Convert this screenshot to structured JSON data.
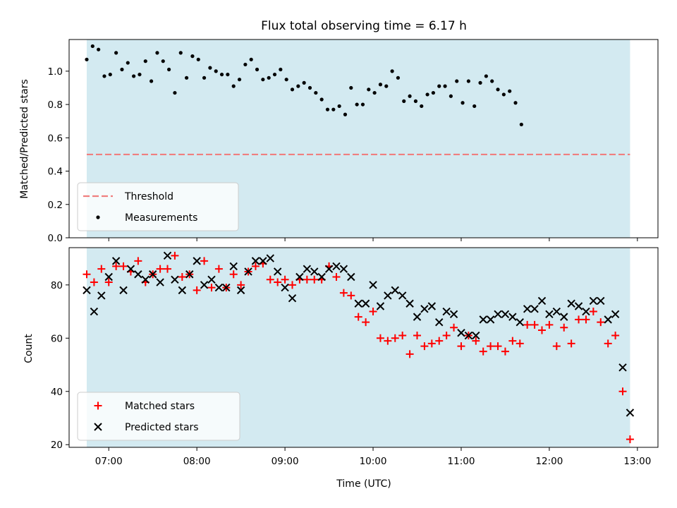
{
  "chart_data": [
    {
      "type": "scatter",
      "title": "Flux total observing time = 6.17 h",
      "xlabel": "",
      "ylabel": "Matched/Predicted stars",
      "ylim": [
        0,
        1.19
      ],
      "yticks": [
        "0.0",
        "0.2",
        "0.4",
        "0.6",
        "0.8",
        "1.0"
      ],
      "xlim": [
        "06:33",
        "13:14"
      ],
      "shaded_span": [
        "06:45",
        "12:55"
      ],
      "shade_color": "#d3eaf1",
      "threshold": {
        "name": "Threshold",
        "value": 0.5,
        "color": "#f07f7f",
        "style": "dashed"
      },
      "series": [
        {
          "name": "Measurements",
          "color": "#000000",
          "marker": "dot",
          "points": [
            [
              "06:45",
              1.07
            ],
            [
              "06:49",
              1.15
            ],
            [
              "06:53",
              1.13
            ],
            [
              "06:57",
              0.97
            ],
            [
              "07:01",
              0.98
            ],
            [
              "07:05",
              1.11
            ],
            [
              "07:09",
              1.01
            ],
            [
              "07:13",
              1.05
            ],
            [
              "07:17",
              0.97
            ],
            [
              "07:21",
              0.98
            ],
            [
              "07:25",
              1.06
            ],
            [
              "07:29",
              0.94
            ],
            [
              "07:33",
              1.11
            ],
            [
              "07:37",
              1.06
            ],
            [
              "07:41",
              1.01
            ],
            [
              "07:45",
              0.87
            ],
            [
              "07:49",
              1.11
            ],
            [
              "07:53",
              0.96
            ],
            [
              "07:57",
              1.09
            ],
            [
              "08:01",
              1.07
            ],
            [
              "08:05",
              0.96
            ],
            [
              "08:09",
              1.02
            ],
            [
              "08:13",
              1.0
            ],
            [
              "08:17",
              0.98
            ],
            [
              "08:21",
              0.98
            ],
            [
              "08:25",
              0.91
            ],
            [
              "08:29",
              0.95
            ],
            [
              "08:33",
              1.04
            ],
            [
              "08:37",
              1.07
            ],
            [
              "08:41",
              1.01
            ],
            [
              "08:45",
              0.95
            ],
            [
              "08:49",
              0.96
            ],
            [
              "08:53",
              0.98
            ],
            [
              "08:57",
              1.01
            ],
            [
              "09:01",
              0.95
            ],
            [
              "09:05",
              0.89
            ],
            [
              "09:09",
              0.91
            ],
            [
              "09:13",
              0.93
            ],
            [
              "09:17",
              0.9
            ],
            [
              "09:21",
              0.87
            ],
            [
              "09:25",
              0.83
            ],
            [
              "09:29",
              0.77
            ],
            [
              "09:33",
              0.77
            ],
            [
              "09:37",
              0.79
            ],
            [
              "09:41",
              0.74
            ],
            [
              "09:45",
              0.9
            ],
            [
              "09:49",
              0.8
            ],
            [
              "09:53",
              0.8
            ],
            [
              "09:57",
              0.89
            ],
            [
              "10:01",
              0.87
            ],
            [
              "10:05",
              0.92
            ],
            [
              "10:09",
              0.91
            ],
            [
              "10:13",
              1.0
            ],
            [
              "10:17",
              0.96
            ],
            [
              "10:21",
              0.82
            ],
            [
              "10:25",
              0.85
            ],
            [
              "10:29",
              0.82
            ],
            [
              "10:33",
              0.79
            ],
            [
              "10:37",
              0.86
            ],
            [
              "10:41",
              0.87
            ],
            [
              "10:45",
              0.91
            ],
            [
              "10:49",
              0.91
            ],
            [
              "10:53",
              0.85
            ],
            [
              "10:57",
              0.94
            ],
            [
              "11:01",
              0.81
            ],
            [
              "11:05",
              0.94
            ],
            [
              "11:09",
              0.79
            ],
            [
              "11:13",
              0.93
            ],
            [
              "11:17",
              0.97
            ],
            [
              "11:21",
              0.94
            ],
            [
              "11:25",
              0.89
            ],
            [
              "11:29",
              0.86
            ],
            [
              "11:33",
              0.88
            ],
            [
              "11:37",
              0.81
            ],
            [
              "11:41",
              0.68
            ]
          ]
        }
      ],
      "legend": "lower-left"
    },
    {
      "type": "scatter",
      "title": "",
      "xlabel": "Time (UTC)",
      "ylabel": "Count",
      "ylim": [
        19,
        94
      ],
      "yticks": [
        "20",
        "40",
        "60",
        "80"
      ],
      "xlim": [
        "06:33",
        "13:14"
      ],
      "xticks": [
        "07:00",
        "08:00",
        "09:00",
        "10:00",
        "11:00",
        "12:00",
        "13:00"
      ],
      "shaded_span": [
        "06:45",
        "12:55"
      ],
      "shade_color": "#d3eaf1",
      "series": [
        {
          "name": "Matched stars",
          "color": "#ff0000",
          "marker": "plus",
          "points": [
            [
              "06:45",
              84
            ],
            [
              "06:50",
              81
            ],
            [
              "06:55",
              86
            ],
            [
              "07:00",
              81
            ],
            [
              "07:05",
              87
            ],
            [
              "07:10",
              87
            ],
            [
              "07:15",
              85
            ],
            [
              "07:20",
              89
            ],
            [
              "07:25",
              81
            ],
            [
              "07:30",
              84
            ],
            [
              "07:35",
              86
            ],
            [
              "07:40",
              86
            ],
            [
              "07:45",
              91
            ],
            [
              "07:50",
              83
            ],
            [
              "07:55",
              84
            ],
            [
              "08:00",
              78
            ],
            [
              "08:05",
              89
            ],
            [
              "08:10",
              79
            ],
            [
              "08:15",
              86
            ],
            [
              "08:20",
              79
            ],
            [
              "08:25",
              84
            ],
            [
              "08:30",
              80
            ],
            [
              "08:35",
              85
            ],
            [
              "08:40",
              87
            ],
            [
              "08:45",
              88
            ],
            [
              "08:50",
              82
            ],
            [
              "08:55",
              81
            ],
            [
              "09:00",
              82
            ],
            [
              "09:05",
              80
            ],
            [
              "09:10",
              82
            ],
            [
              "09:15",
              82
            ],
            [
              "09:20",
              82
            ],
            [
              "09:25",
              82
            ],
            [
              "09:30",
              87
            ],
            [
              "09:35",
              83
            ],
            [
              "09:40",
              77
            ],
            [
              "09:45",
              76
            ],
            [
              "09:50",
              68
            ],
            [
              "09:55",
              66
            ],
            [
              "10:00",
              70
            ],
            [
              "10:05",
              60
            ],
            [
              "10:10",
              59
            ],
            [
              "10:15",
              60
            ],
            [
              "10:20",
              61
            ],
            [
              "10:25",
              54
            ],
            [
              "10:30",
              61
            ],
            [
              "10:35",
              57
            ],
            [
              "10:40",
              58
            ],
            [
              "10:45",
              59
            ],
            [
              "10:50",
              61
            ],
            [
              "10:55",
              64
            ],
            [
              "11:00",
              57
            ],
            [
              "11:05",
              61
            ],
            [
              "11:10",
              59
            ],
            [
              "11:15",
              55
            ],
            [
              "11:20",
              57
            ],
            [
              "11:25",
              57
            ],
            [
              "11:30",
              55
            ],
            [
              "11:35",
              59
            ],
            [
              "11:40",
              58
            ],
            [
              "11:45",
              65
            ],
            [
              "11:50",
              65
            ],
            [
              "11:55",
              63
            ],
            [
              "12:00",
              65
            ],
            [
              "12:05",
              57
            ],
            [
              "12:10",
              64
            ],
            [
              "12:15",
              58
            ],
            [
              "12:20",
              67
            ],
            [
              "12:25",
              67
            ],
            [
              "12:30",
              70
            ],
            [
              "12:35",
              66
            ],
            [
              "12:40",
              58
            ],
            [
              "12:45",
              61
            ],
            [
              "12:50",
              40
            ],
            [
              "12:55",
              22
            ]
          ]
        },
        {
          "name": "Predicted stars",
          "color": "#000000",
          "marker": "x",
          "points": [
            [
              "06:45",
              78
            ],
            [
              "06:50",
              70
            ],
            [
              "06:55",
              76
            ],
            [
              "07:00",
              83
            ],
            [
              "07:05",
              89
            ],
            [
              "07:10",
              78
            ],
            [
              "07:15",
              86
            ],
            [
              "07:20",
              84
            ],
            [
              "07:25",
              82
            ],
            [
              "07:30",
              84
            ],
            [
              "07:35",
              81
            ],
            [
              "07:40",
              91
            ],
            [
              "07:45",
              82
            ],
            [
              "07:50",
              78
            ],
            [
              "07:55",
              84
            ],
            [
              "08:00",
              89
            ],
            [
              "08:05",
              80
            ],
            [
              "08:10",
              82
            ],
            [
              "08:15",
              79
            ],
            [
              "08:20",
              79
            ],
            [
              "08:25",
              87
            ],
            [
              "08:30",
              78
            ],
            [
              "08:35",
              85
            ],
            [
              "08:40",
              89
            ],
            [
              "08:45",
              89
            ],
            [
              "08:50",
              90
            ],
            [
              "08:55",
              85
            ],
            [
              "09:00",
              79
            ],
            [
              "09:05",
              75
            ],
            [
              "09:10",
              83
            ],
            [
              "09:15",
              86
            ],
            [
              "09:20",
              85
            ],
            [
              "09:25",
              83
            ],
            [
              "09:30",
              86
            ],
            [
              "09:35",
              87
            ],
            [
              "09:40",
              86
            ],
            [
              "09:45",
              83
            ],
            [
              "09:50",
              73
            ],
            [
              "09:55",
              73
            ],
            [
              "10:00",
              80
            ],
            [
              "10:05",
              72
            ],
            [
              "10:10",
              76
            ],
            [
              "10:15",
              78
            ],
            [
              "10:20",
              76
            ],
            [
              "10:25",
              73
            ],
            [
              "10:30",
              68
            ],
            [
              "10:35",
              71
            ],
            [
              "10:40",
              72
            ],
            [
              "10:45",
              66
            ],
            [
              "10:50",
              70
            ],
            [
              "10:55",
              69
            ],
            [
              "11:00",
              62
            ],
            [
              "11:05",
              61
            ],
            [
              "11:10",
              61
            ],
            [
              "11:15",
              67
            ],
            [
              "11:20",
              67
            ],
            [
              "11:25",
              69
            ],
            [
              "11:30",
              69
            ],
            [
              "11:35",
              68
            ],
            [
              "11:40",
              66
            ],
            [
              "11:45",
              71
            ],
            [
              "11:50",
              71
            ],
            [
              "11:55",
              74
            ],
            [
              "12:00",
              69
            ],
            [
              "12:05",
              70
            ],
            [
              "12:10",
              68
            ],
            [
              "12:15",
              73
            ],
            [
              "12:20",
              72
            ],
            [
              "12:25",
              70
            ],
            [
              "12:30",
              74
            ],
            [
              "12:35",
              74
            ],
            [
              "12:40",
              67
            ],
            [
              "12:45",
              69
            ],
            [
              "12:50",
              49
            ],
            [
              "12:55",
              32
            ]
          ]
        }
      ],
      "legend": "lower-left"
    }
  ]
}
